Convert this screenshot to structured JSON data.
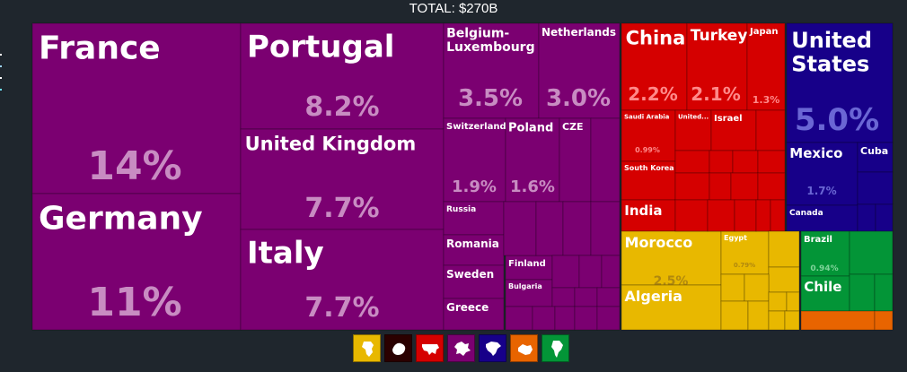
{
  "total_label": "TOTAL: $270B",
  "colors": {
    "europe": "#7b0071",
    "asia": "#d50000",
    "north_america": "#170089",
    "africa": "#e8b800",
    "south_america": "#039537",
    "oceania": "#e86400",
    "antarctica": "#3a0000"
  },
  "legend": [
    {
      "name": "africa-icon",
      "color": "#e8b800"
    },
    {
      "name": "antarctica-icon",
      "color": "#2a0000"
    },
    {
      "name": "asia-icon",
      "color": "#d50000"
    },
    {
      "name": "europe-icon",
      "color": "#7b0071"
    },
    {
      "name": "north-america-icon",
      "color": "#170089"
    },
    {
      "name": "oceania-icon",
      "color": "#e86400"
    },
    {
      "name": "south-america-icon",
      "color": "#039537"
    }
  ],
  "chart_data": {
    "type": "treemap",
    "total": "$270B",
    "items": [
      {
        "name": "France",
        "share": "14%",
        "region": "europe"
      },
      {
        "name": "Germany",
        "share": "11%",
        "region": "europe"
      },
      {
        "name": "Portugal",
        "share": "8.2%",
        "region": "europe"
      },
      {
        "name": "United Kingdom",
        "share": "7.7%",
        "region": "europe"
      },
      {
        "name": "Italy",
        "share": "7.7%",
        "region": "europe"
      },
      {
        "name": "Belgium-Luxembourg",
        "share": "3.5%",
        "region": "europe"
      },
      {
        "name": "Netherlands",
        "share": "3.0%",
        "region": "europe"
      },
      {
        "name": "Switzerland",
        "share": "1.9%",
        "region": "europe"
      },
      {
        "name": "Poland",
        "share": "1.6%",
        "region": "europe"
      },
      {
        "name": "CZE",
        "share": "",
        "region": "europe"
      },
      {
        "name": "Russia",
        "share": "",
        "region": "europe"
      },
      {
        "name": "Romania",
        "share": "",
        "region": "europe"
      },
      {
        "name": "Finland",
        "share": "",
        "region": "europe"
      },
      {
        "name": "Sweden",
        "share": "",
        "region": "europe"
      },
      {
        "name": "Bulgaria",
        "share": "",
        "region": "europe"
      },
      {
        "name": "Greece",
        "share": "",
        "region": "europe"
      },
      {
        "name": "China",
        "share": "2.2%",
        "region": "asia"
      },
      {
        "name": "Turkey",
        "share": "2.1%",
        "region": "asia"
      },
      {
        "name": "Japan",
        "share": "1.3%",
        "region": "asia"
      },
      {
        "name": "Saudi Arabia",
        "share": "0.99%",
        "region": "asia"
      },
      {
        "name": "United...",
        "share": "",
        "region": "asia"
      },
      {
        "name": "Israel",
        "share": "",
        "region": "asia"
      },
      {
        "name": "South Korea",
        "share": "",
        "region": "asia"
      },
      {
        "name": "India",
        "share": "",
        "region": "asia"
      },
      {
        "name": "United States",
        "share": "5.0%",
        "region": "north_america"
      },
      {
        "name": "Mexico",
        "share": "1.7%",
        "region": "north_america"
      },
      {
        "name": "Cuba",
        "share": "",
        "region": "north_america"
      },
      {
        "name": "Canada",
        "share": "",
        "region": "north_america"
      },
      {
        "name": "Morocco",
        "share": "2.5%",
        "region": "africa"
      },
      {
        "name": "Egypt",
        "share": "0.79%",
        "region": "africa"
      },
      {
        "name": "Algeria",
        "share": "",
        "region": "africa"
      },
      {
        "name": "Brazil",
        "share": "0.94%",
        "region": "south_america"
      },
      {
        "name": "Chile",
        "share": "",
        "region": "south_america"
      }
    ]
  }
}
